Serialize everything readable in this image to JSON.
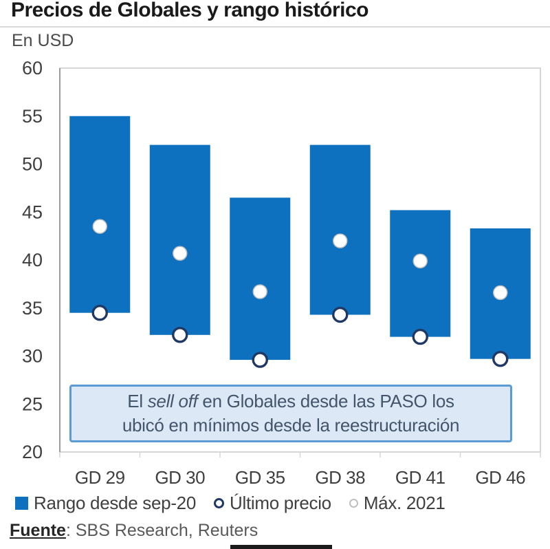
{
  "chart_data": {
    "type": "bar",
    "title": "Precios de Globales y rango histórico",
    "subtitle": "En USD",
    "categories": [
      "GD 29",
      "GD 30",
      "GD 35",
      "GD 38",
      "GD 41",
      "GD 46"
    ],
    "series": [
      {
        "name": "Rango desde sep-20",
        "type": "range",
        "low": [
          34.5,
          32.2,
          29.6,
          34.3,
          32.0,
          29.7
        ],
        "high": [
          55.0,
          52.0,
          46.5,
          52.0,
          45.2,
          43.3
        ]
      },
      {
        "name": "Último precio",
        "type": "scatter",
        "values": [
          34.5,
          32.2,
          29.6,
          34.3,
          32.0,
          29.7
        ]
      },
      {
        "name": "Máx. 2021",
        "type": "scatter",
        "values": [
          43.5,
          40.7,
          36.7,
          42.0,
          39.9,
          36.6
        ]
      }
    ],
    "ylim": [
      20,
      60
    ],
    "ytick_step": 5,
    "grid": false,
    "legend_position": "bottom",
    "annotation": {
      "prefix": "El ",
      "italic": "sell off",
      "suffix": " en Globales desde las PASO los",
      "line2": "ubicó en mínimos desde la reestructuración"
    },
    "source_label": "Fuente",
    "source_rest": ": SBS Research, Reuters"
  },
  "colors": {
    "bar": "#0e71c0",
    "ultimo_ring": "#1f3864",
    "max_ring": "#bfbfbf",
    "axis_text": "#3f3f3f",
    "plot_border": "#d6d6d6",
    "axis_line": "#9b9b9b",
    "annotation_bg": "#dce8f5",
    "annotation_border": "#5b9bd5",
    "annotation_text": "#44546a"
  }
}
